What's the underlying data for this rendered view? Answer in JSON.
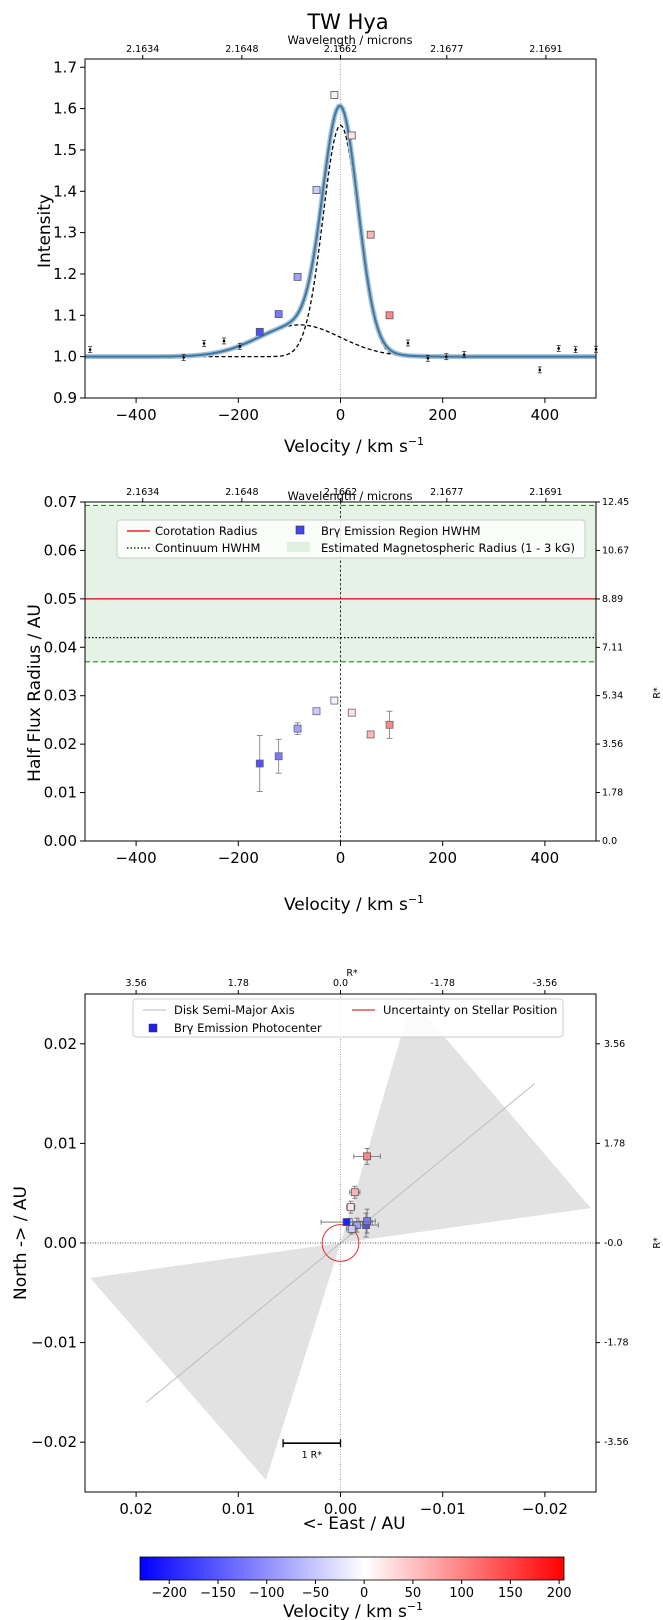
{
  "chart_data": [
    {
      "type": "line",
      "title": "TW Hya",
      "xlabel": "Velocity / km s$^{-1}$",
      "xlabel_main": "Velocity / km s",
      "xlabel_sup": "−1",
      "ylabel": "Intensity",
      "top_axis_label": "Wavelength / microns",
      "xlim": [
        -500,
        500
      ],
      "ylim": [
        0.9,
        1.72
      ],
      "x_ticks": [
        -400,
        -200,
        0,
        200,
        400
      ],
      "x_tick_labels": [
        "−400",
        "−200",
        "0",
        "200",
        "400"
      ],
      "y_ticks": [
        0.9,
        1.0,
        1.1,
        1.2,
        1.3,
        1.4,
        1.5,
        1.6,
        1.7
      ],
      "y_tick_labels": [
        "0.9",
        "1.0",
        "1.1",
        "1.2",
        "1.3",
        "1.4",
        "1.5",
        "1.6",
        "1.7"
      ],
      "top_ticks": [
        2.1634,
        2.1648,
        2.1662,
        2.1677,
        2.1691
      ],
      "top_tick_labels": [
        "2.1634",
        "2.1648",
        "2.1662",
        "2.1677",
        "2.1691"
      ],
      "top_tick_velocity": [
        -387,
        -193,
        0,
        208,
        402
      ],
      "grid": false,
      "fit_curve": {
        "continuum": 1.0,
        "narrow_gaussian": {
          "amplitude": 0.56,
          "center": 0,
          "sigma": 34
        },
        "broad_gaussian": {
          "amplitude": 0.077,
          "center": -80,
          "sigma": 80
        },
        "color": "#3a78a8"
      },
      "component_curves": [
        {
          "kind": "narrow_gaussian",
          "amplitude": 0.56,
          "center": 0,
          "sigma": 34,
          "style": "dashed"
        },
        {
          "kind": "broad_gaussian",
          "amplitude": 0.077,
          "center": -80,
          "sigma": 80,
          "style": "dashed"
        }
      ],
      "photometry_points": [
        {
          "x": -490,
          "y": 1.017
        },
        {
          "x": -307,
          "y": 0.998
        },
        {
          "x": -267,
          "y": 1.032
        },
        {
          "x": -228,
          "y": 1.038
        },
        {
          "x": -197,
          "y": 1.025
        },
        {
          "x": 132,
          "y": 1.033
        },
        {
          "x": 171,
          "y": 0.996
        },
        {
          "x": 207,
          "y": 1.0
        },
        {
          "x": 242,
          "y": 1.005
        },
        {
          "x": 390,
          "y": 0.968
        },
        {
          "x": 427,
          "y": 1.02
        },
        {
          "x": 460,
          "y": 1.017
        },
        {
          "x": 500,
          "y": 1.018
        }
      ],
      "spectral_channels": [
        {
          "x": -158,
          "y": 1.06
        },
        {
          "x": -121,
          "y": 1.103
        },
        {
          "x": -84,
          "y": 1.193
        },
        {
          "x": -47,
          "y": 1.403
        },
        {
          "x": -12,
          "y": 1.633
        },
        {
          "x": 22,
          "y": 1.535
        },
        {
          "x": 59,
          "y": 1.295
        },
        {
          "x": 96,
          "y": 1.1
        }
      ],
      "vline_x": 0
    },
    {
      "type": "scatter",
      "xlabel": "Velocity / km s$^{-1}$",
      "xlabel_main": "Velocity / km s",
      "xlabel_sup": "−1",
      "ylabel": "Half Flux Radius / AU",
      "y2label": "R*",
      "top_axis_label": "Wavelength / microns",
      "xlim": [
        -500,
        500
      ],
      "ylim": [
        0,
        0.07
      ],
      "x_ticks": [
        -400,
        -200,
        0,
        200,
        400
      ],
      "x_tick_labels": [
        "−400",
        "−200",
        "0",
        "200",
        "400"
      ],
      "y_ticks": [
        0,
        0.01,
        0.02,
        0.03,
        0.04,
        0.05,
        0.06,
        0.07
      ],
      "y_tick_labels": [
        "0.00",
        "0.01",
        "0.02",
        "0.03",
        "0.04",
        "0.05",
        "0.06",
        "0.07"
      ],
      "y2_ticks": [
        0,
        1.78,
        3.56,
        5.34,
        7.11,
        8.89,
        10.67,
        12.45
      ],
      "y2_tick_labels": [
        "0.0",
        "1.78",
        "3.56",
        "5.34",
        "7.11",
        "8.89",
        "10.67",
        "12.45"
      ],
      "top_ticks": [
        2.1634,
        2.1648,
        2.1662,
        2.1677,
        2.1691
      ],
      "top_tick_labels": [
        "2.1634",
        "2.1648",
        "2.1662",
        "2.1677",
        "2.1691"
      ],
      "grid": false,
      "legend": [
        "Corotation Radius",
        "Continuum HWHM",
        "Brγ Emission Region HWHM",
        "Estimated Magnetospheric Radius (1 - 3 kG)"
      ],
      "legend_location": "top",
      "corotation_radius": 0.05,
      "continuum_hwhm": 0.042,
      "magnetospheric_band": [
        0.037,
        0.0693
      ],
      "points": [
        {
          "x": -158,
          "y": 0.016,
          "err": 0.0058
        },
        {
          "x": -121,
          "y": 0.0175,
          "err": 0.0035
        },
        {
          "x": -84,
          "y": 0.0232,
          "err": 0.0012
        },
        {
          "x": -47,
          "y": 0.0268,
          "err": 0.0005
        },
        {
          "x": -12,
          "y": 0.029,
          "err": 0.0003
        },
        {
          "x": 22,
          "y": 0.0265,
          "err": 0.0004
        },
        {
          "x": 59,
          "y": 0.022,
          "err": 0.0006
        },
        {
          "x": 96,
          "y": 0.024,
          "err": 0.0028
        }
      ],
      "vline_x": 0
    },
    {
      "type": "scatter",
      "xlabel": "<- East  / AU",
      "ylabel": "North -> / AU",
      "top_axis_label": "R*",
      "y2label": "R*",
      "xlim": [
        0.025,
        -0.025
      ],
      "ylim": [
        -0.025,
        0.025
      ],
      "x_ticks": [
        0.02,
        0.01,
        0.0,
        -0.01,
        -0.02
      ],
      "x_tick_labels": [
        "0.02",
        "0.01",
        "0.00",
        "−0.01",
        "−0.02"
      ],
      "y_ticks": [
        -0.02,
        -0.01,
        0.0,
        0.01,
        0.02
      ],
      "y_tick_labels": [
        "−0.02",
        "−0.01",
        "0.00",
        "0.01",
        "0.02"
      ],
      "top_ticks": [
        3.56,
        1.78,
        0.0,
        -1.78,
        -3.56
      ],
      "top_tick_labels": [
        "3.56",
        "1.78",
        "0.0",
        "-1.78",
        "-3.56"
      ],
      "right_ticks": [
        3.56,
        1.78,
        0.0,
        -1.78,
        -3.56
      ],
      "right_tick_labels": [
        "3.56",
        "1.78",
        "-0.0",
        "-1.78",
        "-3.56"
      ],
      "grid": false,
      "legend": [
        "Disk Semi-Major Axis",
        "Uncertainty on Stellar Position",
        "Brγ Emission Photocenter"
      ],
      "disk_axis_pa_deg": 151,
      "stellar_position_uncertainty_au": 0.0018,
      "scale_bar_label": "1 R*",
      "photocenters": [
        {
          "vel": -158,
          "x": -0.0025,
          "y": 0.0018,
          "xerr": 0.0012,
          "yerr": 0.0012
        },
        {
          "vel": -121,
          "x": -0.0026,
          "y": 0.0022,
          "xerr": 0.0008,
          "yerr": 0.0012
        },
        {
          "vel": -84,
          "x": -0.0016,
          "y": 0.0018,
          "xerr": 0.0006,
          "yerr": 0.0007
        },
        {
          "vel": -47,
          "x": -0.0011,
          "y": 0.0014,
          "xerr": 0.0005,
          "yerr": 0.0005
        },
        {
          "vel": -12,
          "x": -0.0008,
          "y": 0.0021,
          "xerr": 0.0003,
          "yerr": 0.0003
        },
        {
          "vel": 22,
          "x": -0.001,
          "y": 0.0036,
          "xerr": 0.0004,
          "yerr": 0.0006
        },
        {
          "vel": 59,
          "x": -0.0014,
          "y": 0.0051,
          "xerr": 0.0005,
          "yerr": 0.0006
        },
        {
          "vel": 96,
          "x": -0.0026,
          "y": 0.0087,
          "xerr": 0.0013,
          "yerr": 0.0008
        },
        {
          "vel": -200,
          "x": -0.0006,
          "y": 0.0021,
          "xerr": 0.0025,
          "yerr": 0.0003
        }
      ]
    }
  ],
  "colorbar": {
    "label_main": "Velocity / km s",
    "label_sup": "−1",
    "label": "Velocity / km s$^{-1}$",
    "range": [
      -230,
      205
    ],
    "ticks": [
      -200,
      -150,
      -100,
      -50,
      0,
      50,
      100,
      150,
      200
    ],
    "tick_labels": [
      "−200",
      "−150",
      "−100",
      "−50",
      "0",
      "50",
      "100",
      "150",
      "200"
    ],
    "colormap": [
      "#0000ff",
      "#ffffff",
      "#ff0000"
    ]
  }
}
